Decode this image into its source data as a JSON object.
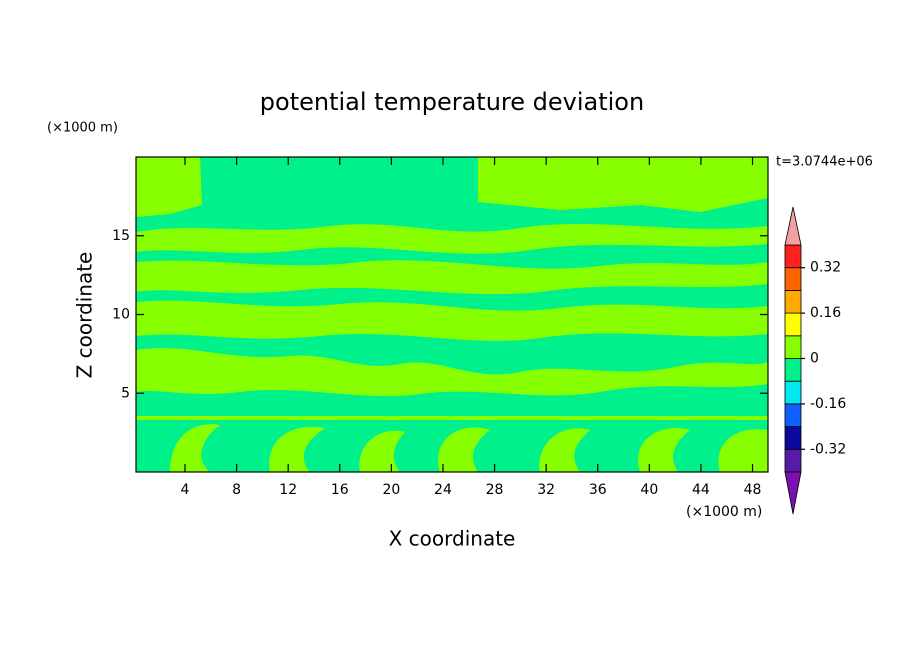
{
  "chart_data": {
    "type": "contour",
    "title": "potential temperature deviation",
    "x_label": "X coordinate",
    "y_label": "Z coordinate",
    "x_unit": "(×1000 m)",
    "y_unit": "(×1000 m)",
    "time_label": "t=3.0744e+06",
    "xlim": [
      0.2,
      49.2
    ],
    "xticks": [
      4,
      8,
      12,
      16,
      20,
      24,
      28,
      32,
      36,
      40,
      44,
      48
    ],
    "ylim": [
      0,
      20
    ],
    "yticks": [
      5,
      10,
      15
    ],
    "colorbar": {
      "levels": [
        -0.4,
        -0.32,
        -0.24,
        -0.16,
        -0.08,
        0,
        0.08,
        0.16,
        0.24,
        0.32,
        0.4
      ],
      "colors": [
        "#5a1aa8",
        "#0a0aa0",
        "#1060ff",
        "#00e8f0",
        "#00f08c",
        "#88ff00",
        "#ffff00",
        "#ffaa00",
        "#ff6400",
        "#ff2020"
      ],
      "extend_colors": [
        "#7a10b0",
        "#f4a0a0"
      ],
      "ticks": [
        -0.32,
        -0.16,
        0,
        0.16,
        0.32
      ]
    }
  }
}
